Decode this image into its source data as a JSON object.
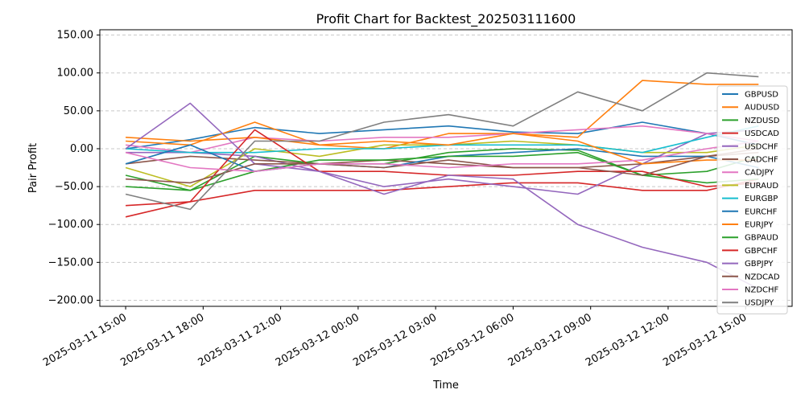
{
  "chart_data": {
    "type": "line",
    "title": "Profit Chart for Backtest_202503111600",
    "xlabel": "Time",
    "ylabel": "Pair Profit",
    "grid": "horizontal dashed",
    "legend_position": "right",
    "x_ticks": [
      "2025-03-11 15:00",
      "2025-03-11 18:00",
      "2025-03-11 21:00",
      "2025-03-12 00:00",
      "2025-03-12 03:00",
      "2025-03-12 06:00",
      "2025-03-12 09:00",
      "2025-03-12 12:00",
      "2025-03-12 15:00"
    ],
    "y_ticks": [
      "150.00",
      "100.00",
      "50.00",
      "0.00",
      "−50.00",
      "−100.00",
      "−150.00",
      "−200.00"
    ],
    "y_tick_values": [
      150,
      100,
      50,
      0,
      -50,
      -100,
      -150,
      -200
    ],
    "ylim": [
      -208,
      157
    ],
    "x_range_hours": [
      -1,
      25.8
    ],
    "x_sample_hours": [
      0,
      2.5,
      5,
      7.5,
      10,
      12.5,
      15,
      17.5,
      20,
      22.5,
      24.5
    ],
    "series": [
      {
        "name": "GBPUSD",
        "color": "#1f77b4",
        "values": [
          0,
          12,
          28,
          20,
          25,
          30,
          22,
          20,
          35,
          20,
          5
        ]
      },
      {
        "name": "AUDUSD",
        "color": "#ff7f0e",
        "values": [
          10,
          5,
          35,
          5,
          0,
          20,
          20,
          15,
          90,
          85,
          85
        ]
      },
      {
        "name": "NZDUSD",
        "color": "#2ca02c",
        "values": [
          -35,
          -55,
          -10,
          -20,
          -20,
          -5,
          0,
          -2,
          -35,
          -30,
          -10
        ]
      },
      {
        "name": "USDCAD",
        "color": "#d62728",
        "values": [
          -75,
          -70,
          -55,
          -55,
          -55,
          -50,
          -45,
          -45,
          -55,
          -55,
          -40
        ]
      },
      {
        "name": "USDCHF",
        "color": "#9467bd",
        "values": [
          -5,
          -5,
          -10,
          -30,
          -50,
          -40,
          -50,
          -60,
          -20,
          20,
          25
        ]
      },
      {
        "name": "CADCHF",
        "color": "#8c564b",
        "values": [
          -20,
          -10,
          -15,
          -20,
          -15,
          -20,
          -25,
          -25,
          -20,
          -10,
          0
        ]
      },
      {
        "name": "CADJPY",
        "color": "#e377c2",
        "values": [
          5,
          -5,
          15,
          10,
          15,
          15,
          20,
          25,
          30,
          20,
          10
        ]
      },
      {
        "name": "EURAUD",
        "color": "#bcbd22",
        "values": [
          -25,
          -50,
          0,
          -10,
          5,
          5,
          10,
          5,
          -5,
          -5,
          5
        ]
      },
      {
        "name": "EURGBP",
        "color": "#17becf",
        "values": [
          0,
          -5,
          -5,
          0,
          0,
          5,
          5,
          5,
          -5,
          15,
          30
        ]
      },
      {
        "name": "EURCHF",
        "color": "#1f77b4",
        "values": [
          -20,
          5,
          -30,
          -20,
          -25,
          -10,
          -5,
          0,
          -10,
          -10,
          -25
        ]
      },
      {
        "name": "EURJPY",
        "color": "#ff7f0e",
        "values": [
          15,
          10,
          15,
          5,
          10,
          5,
          20,
          10,
          -20,
          -15,
          -15
        ]
      },
      {
        "name": "GBPAUD",
        "color": "#2ca02c",
        "values": [
          -50,
          -55,
          -30,
          -15,
          -15,
          -10,
          -10,
          -5,
          -35,
          -45,
          -40
        ]
      },
      {
        "name": "GBPCHF",
        "color": "#d62728",
        "values": [
          -90,
          -70,
          25,
          -30,
          -30,
          -35,
          -35,
          -30,
          -30,
          -50,
          -45
        ]
      },
      {
        "name": "GBPJPY",
        "color": "#9467bd",
        "values": [
          0,
          60,
          -20,
          -30,
          -60,
          -35,
          -40,
          -100,
          -130,
          -150,
          -185
        ]
      },
      {
        "name": "NZDCAD",
        "color": "#8c564b",
        "values": [
          -40,
          -45,
          -20,
          -20,
          -25,
          -15,
          -25,
          -25,
          -35,
          -10,
          -5
        ]
      },
      {
        "name": "NZDCHF",
        "color": "#e377c2",
        "values": [
          -5,
          -25,
          -30,
          -20,
          -20,
          -25,
          -20,
          -20,
          -15,
          0,
          10
        ]
      },
      {
        "name": "USDJPY",
        "color": "#7f7f7f",
        "values": [
          -60,
          -80,
          10,
          10,
          35,
          45,
          30,
          75,
          50,
          100,
          95
        ]
      }
    ]
  }
}
